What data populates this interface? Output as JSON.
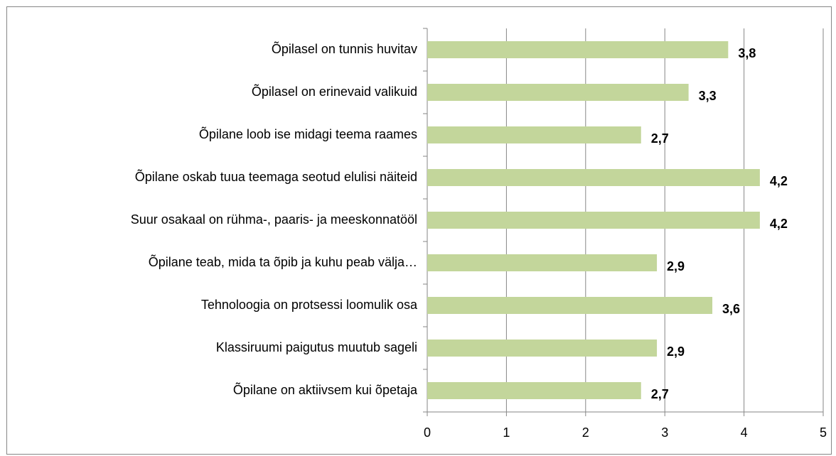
{
  "chart_data": {
    "type": "bar",
    "orientation": "horizontal",
    "categories": [
      "Õpilasel on tunnis huvitav",
      "Õpilasel on erinevaid valikuid",
      "Õpilane loob ise midagi teema raames",
      "Õpilane oskab tuua teemaga seotud elulisi näiteid",
      "Suur osakaal on rühma-, paaris- ja meeskonnatööl",
      "Õpilane teab, mida ta õpib ja kuhu peab välja…",
      "Tehnoloogia on protsessi loomulik osa",
      "Klassiruumi paigutus muutub sageli",
      "Õpilane on aktiivsem kui õpetaja"
    ],
    "values": [
      3.8,
      3.3,
      2.7,
      4.2,
      4.2,
      2.9,
      3.6,
      2.9,
      2.7
    ],
    "value_labels": [
      "3,8",
      "3,3",
      "2,7",
      "4,2",
      "4,2",
      "2,9",
      "3,6",
      "2,9",
      "2,7"
    ],
    "color": "#c3d69b",
    "xlim": [
      0,
      5
    ],
    "xticks": [
      0,
      1,
      2,
      3,
      4,
      5
    ],
    "grid": true
  }
}
